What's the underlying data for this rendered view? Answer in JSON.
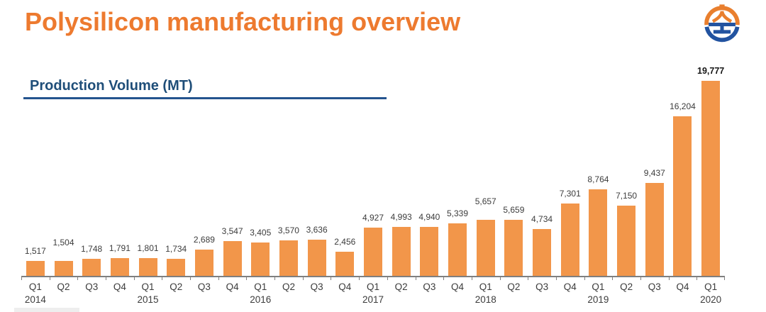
{
  "header": {
    "title": "Polysilicon manufacturing overview",
    "title_color": "#ED7A2F"
  },
  "logo": {
    "orange": "#E97F2E",
    "blue": "#2253A0"
  },
  "section": {
    "label": "Production Volume (MT)",
    "text_color": "#1F4E79",
    "rule_color": "#24548E"
  },
  "chart_data": {
    "type": "bar",
    "title": "Production Volume (MT)",
    "unit": "MT",
    "categories": [
      "Q1 2014",
      "Q2 2014",
      "Q3 2014",
      "Q4 2014",
      "Q1 2015",
      "Q2 2015",
      "Q3 2015",
      "Q4 2015",
      "Q1 2016",
      "Q2 2016",
      "Q3 2016",
      "Q4 2016",
      "Q1 2017",
      "Q2 2017",
      "Q3 2017",
      "Q4 2017",
      "Q1 2018",
      "Q2 2018",
      "Q3 2018",
      "Q4 2018",
      "Q1 2019",
      "Q2 2019",
      "Q3 2019",
      "Q4 2019",
      "Q1 2020"
    ],
    "x_tick_labels": [
      "Q1",
      "Q2",
      "Q3",
      "Q4",
      "Q1",
      "Q2",
      "Q3",
      "Q4",
      "Q1",
      "Q2",
      "Q3",
      "Q4",
      "Q1",
      "Q2",
      "Q3",
      "Q4",
      "Q1",
      "Q2",
      "Q3",
      "Q4",
      "Q1",
      "Q2",
      "Q3",
      "Q4",
      "Q1"
    ],
    "year_labels": [
      {
        "index": 0,
        "text": "2014"
      },
      {
        "index": 4,
        "text": "2015"
      },
      {
        "index": 8,
        "text": "2016"
      },
      {
        "index": 12,
        "text": "2017"
      },
      {
        "index": 16,
        "text": "2018"
      },
      {
        "index": 20,
        "text": "2019"
      },
      {
        "index": 24,
        "text": "2020"
      }
    ],
    "values": [
      1517,
      1504,
      1748,
      1791,
      1801,
      1734,
      2689,
      3547,
      3405,
      3570,
      3636,
      2456,
      4927,
      4993,
      4940,
      5339,
      5657,
      5659,
      4734,
      7301,
      8764,
      7150,
      9437,
      16204,
      19777
    ],
    "value_labels": [
      "1,517",
      "1,504",
      "1,748",
      "1,791",
      "1,801",
      "1,734",
      "2,689",
      "3,547",
      "3,405",
      "3,570",
      "3,636",
      "2,456",
      "4,927",
      "4,993",
      "4,940",
      "5,339",
      "5,657",
      "5,659",
      "4,734",
      "7,301",
      "8,764",
      "7,150",
      "9,437",
      "16,204",
      "19,777"
    ],
    "emphasized_index": 24,
    "label_raise_indices": [
      1,
      16
    ],
    "ylim": [
      0,
      19777
    ],
    "grid": false,
    "legend": false,
    "bar_color": "#F2964A",
    "value_label_color": "#3C3C3C",
    "axis_color": "#7F7F7F",
    "tick_label_color": "#3C3C3C"
  }
}
